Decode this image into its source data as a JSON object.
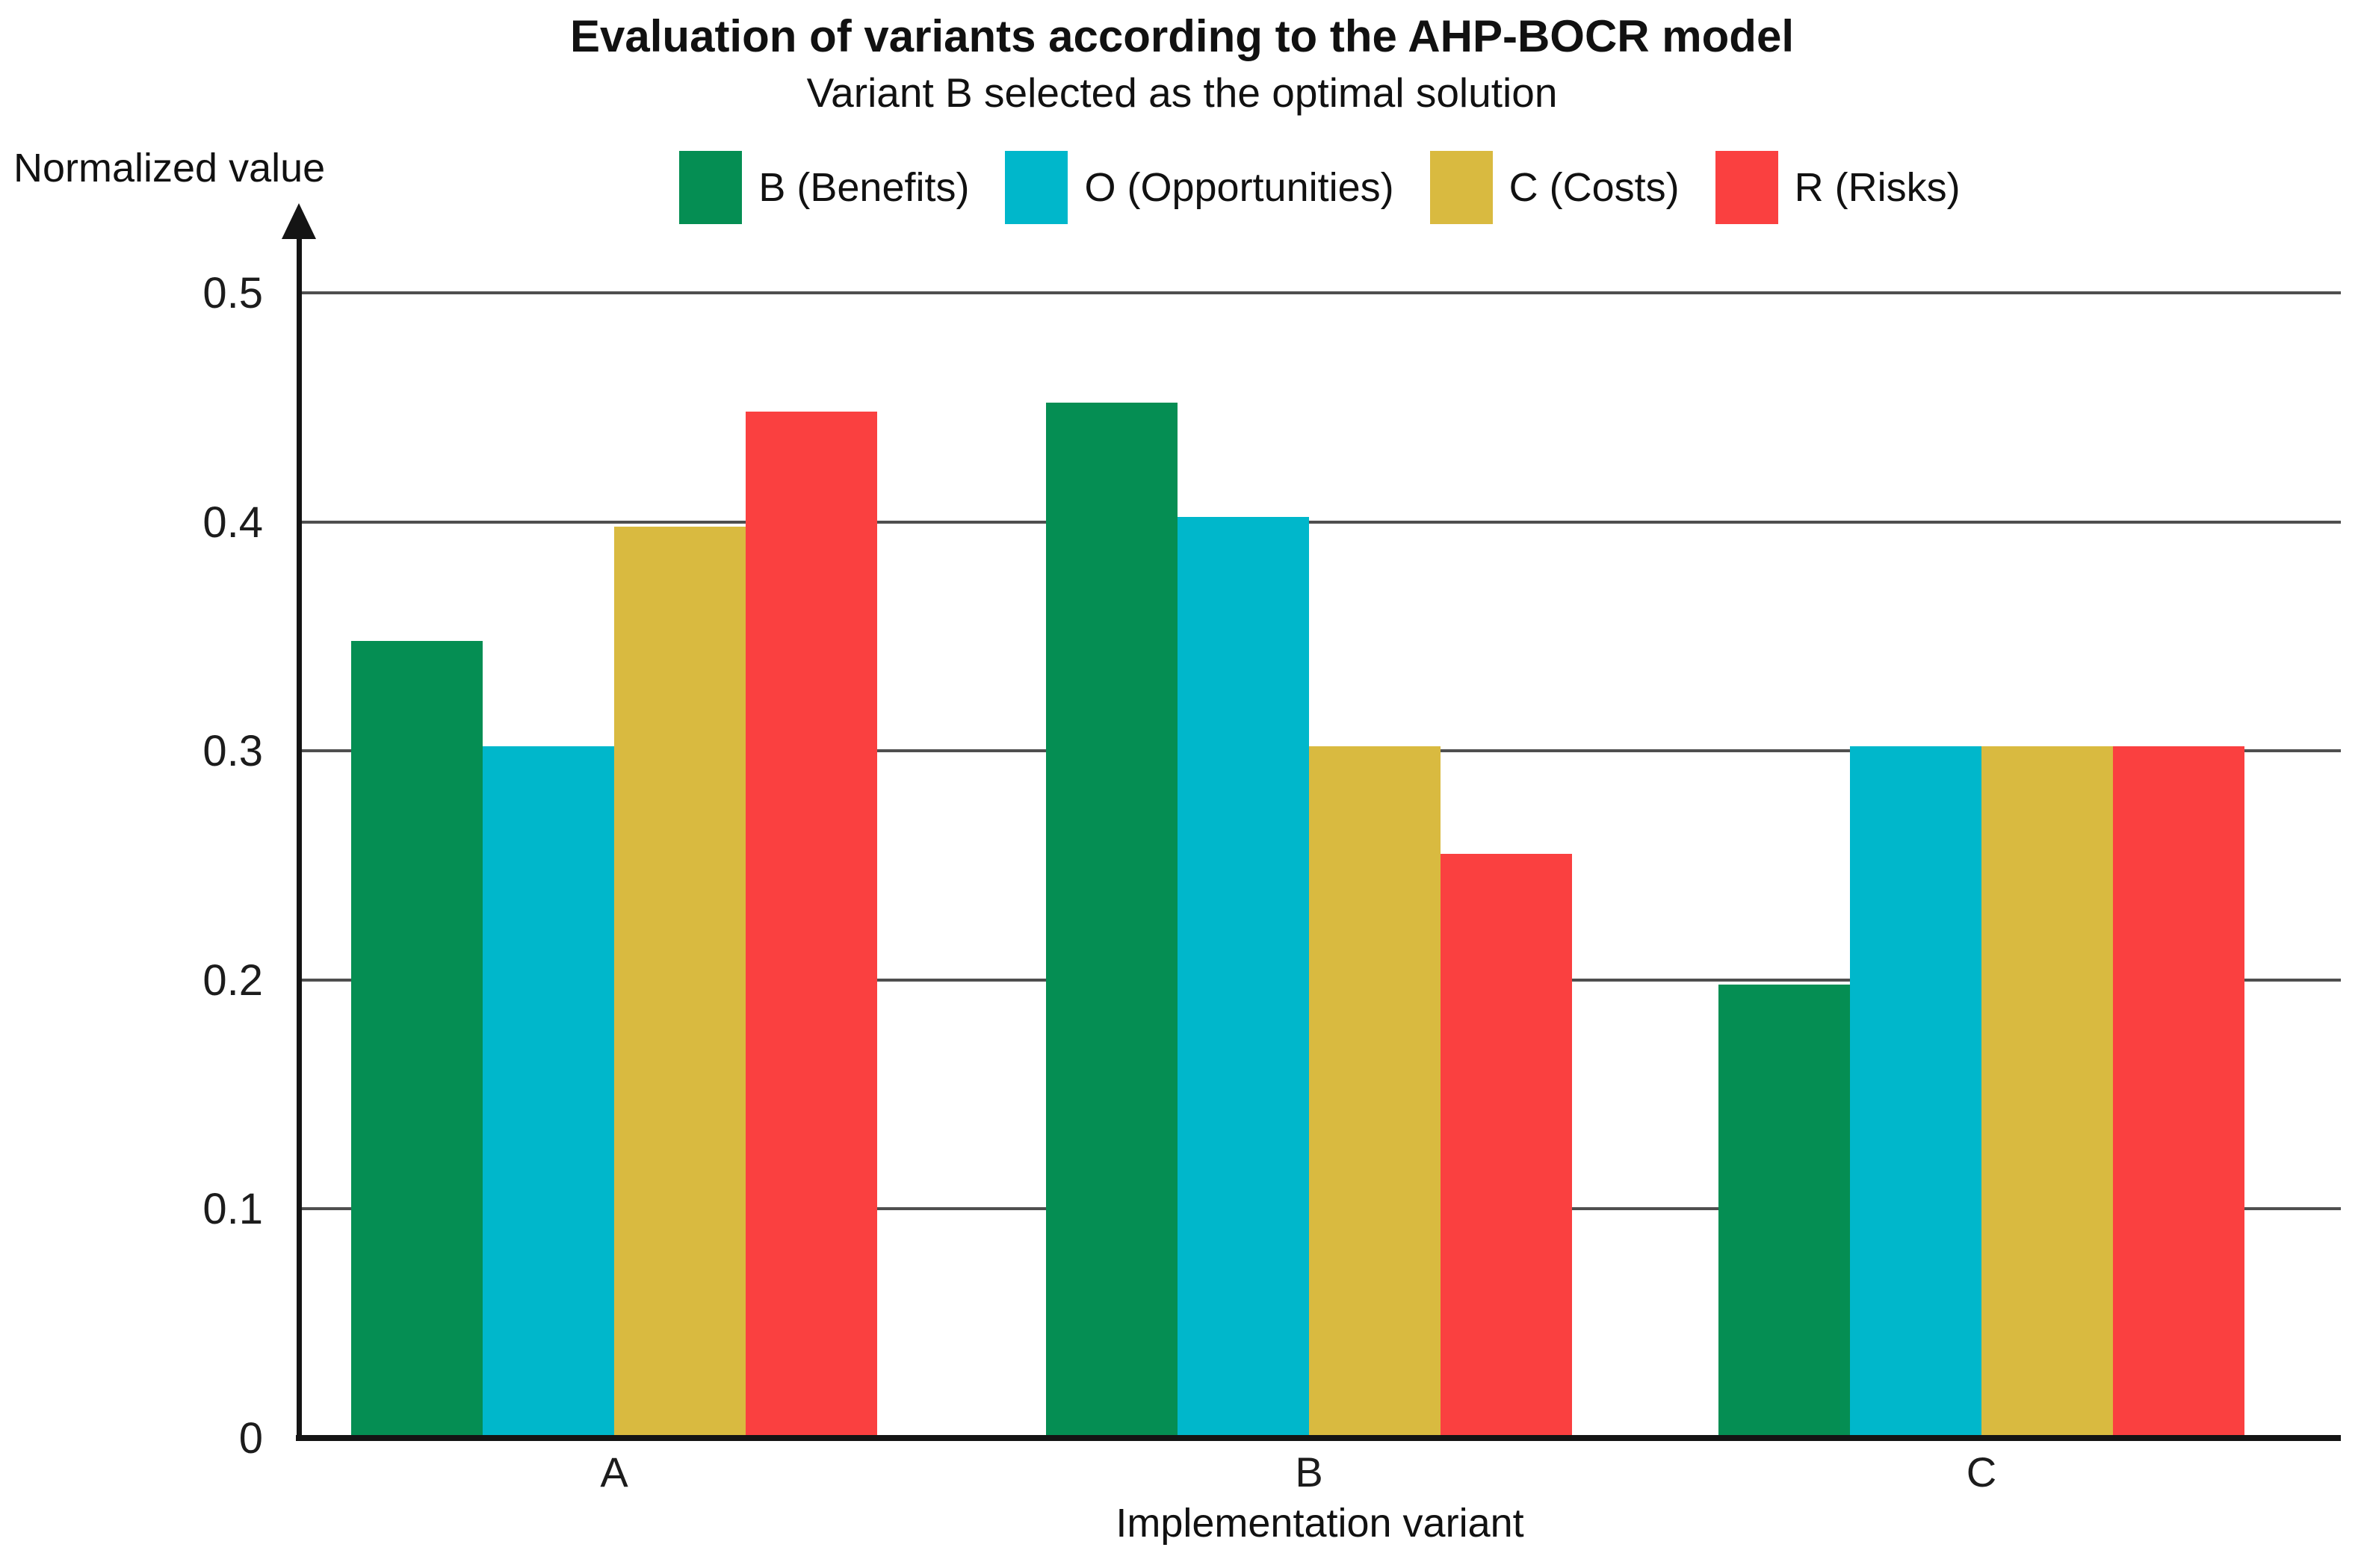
{
  "chart_data": {
    "type": "bar",
    "title": "Evaluation of variants according to the AHP-BOCR model",
    "subtitle": "Variant B selected as the optimal solution",
    "xlabel": "Implementation variant",
    "ylabel": "Normalized value",
    "categories": [
      "A",
      "B",
      "C"
    ],
    "series": [
      {
        "name": "B (Benefits)",
        "color": "#058E53",
        "values": [
          0.348,
          0.452,
          0.198
        ]
      },
      {
        "name": "O (Opportunities)",
        "color": "#00B7CB",
        "values": [
          0.302,
          0.402,
          0.302
        ]
      },
      {
        "name": "C (Costs)",
        "color": "#D9BA40",
        "values": [
          0.398,
          0.302,
          0.302
        ]
      },
      {
        "name": "R (Risks)",
        "color": "#FA4040",
        "values": [
          0.448,
          0.255,
          0.302
        ]
      }
    ],
    "ylim": [
      0,
      0.5
    ],
    "yticks": [
      0,
      0.1,
      0.2,
      0.3,
      0.4,
      0.5
    ],
    "ytick_labels": [
      "0",
      "0.1",
      "0.2",
      "0.3",
      "0.4",
      "0.5"
    ],
    "grid": true,
    "grid_color": "#4f4f4f",
    "axis_color": "#141414",
    "legend_position": "top-center"
  }
}
